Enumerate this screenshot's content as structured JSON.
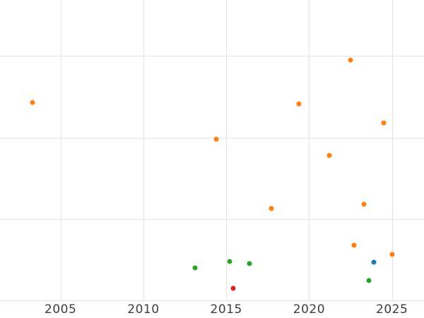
{
  "colors": {
    "background": "#ffffff",
    "gridline": "#e5e5e5",
    "axis_line": "#e0e0e0",
    "tick_label": "#3d3d3d"
  },
  "chart_data": {
    "type": "scatter",
    "title": "",
    "xlabel": "",
    "ylabel": "",
    "legend": "none",
    "grid": true,
    "marker_diameter_px": 7,
    "x_axis": {
      "tick_values": [
        2005,
        2010,
        2015,
        2020,
        2025
      ],
      "tick_labels": [
        "2005",
        "2010",
        "2015",
        "2020",
        "2025"
      ],
      "visible_range": [
        2001.3,
        2026.9
      ]
    },
    "y_axis": {
      "tick_labels_visible": false,
      "gridline_values": [
        0,
        1,
        2,
        3
      ],
      "visible_range": [
        0,
        3.69
      ],
      "note": "y tick labels are cropped out of the screenshot; y values below are in gridline units above the bottom axis line"
    },
    "series": [
      {
        "name": "orange",
        "color": "#ff7f0e",
        "points": [
          {
            "x": 2003.3,
            "y": 2.43
          },
          {
            "x": 2014.4,
            "y": 1.98
          },
          {
            "x": 2017.7,
            "y": 1.13
          },
          {
            "x": 2019.4,
            "y": 2.41
          },
          {
            "x": 2021.2,
            "y": 1.78
          },
          {
            "x": 2022.5,
            "y": 2.95
          },
          {
            "x": 2022.7,
            "y": 0.68
          },
          {
            "x": 2023.3,
            "y": 1.18
          },
          {
            "x": 2024.5,
            "y": 2.18
          },
          {
            "x": 2025.0,
            "y": 0.57
          }
        ]
      },
      {
        "name": "green",
        "color": "#2ca02c",
        "points": [
          {
            "x": 2013.1,
            "y": 0.4
          },
          {
            "x": 2015.2,
            "y": 0.48
          },
          {
            "x": 2016.4,
            "y": 0.45
          },
          {
            "x": 2023.6,
            "y": 0.25
          }
        ]
      },
      {
        "name": "blue",
        "color": "#1f77b4",
        "points": [
          {
            "x": 2023.9,
            "y": 0.47
          }
        ]
      },
      {
        "name": "red",
        "color": "#d62728",
        "points": [
          {
            "x": 2015.4,
            "y": 0.15
          }
        ]
      }
    ]
  }
}
